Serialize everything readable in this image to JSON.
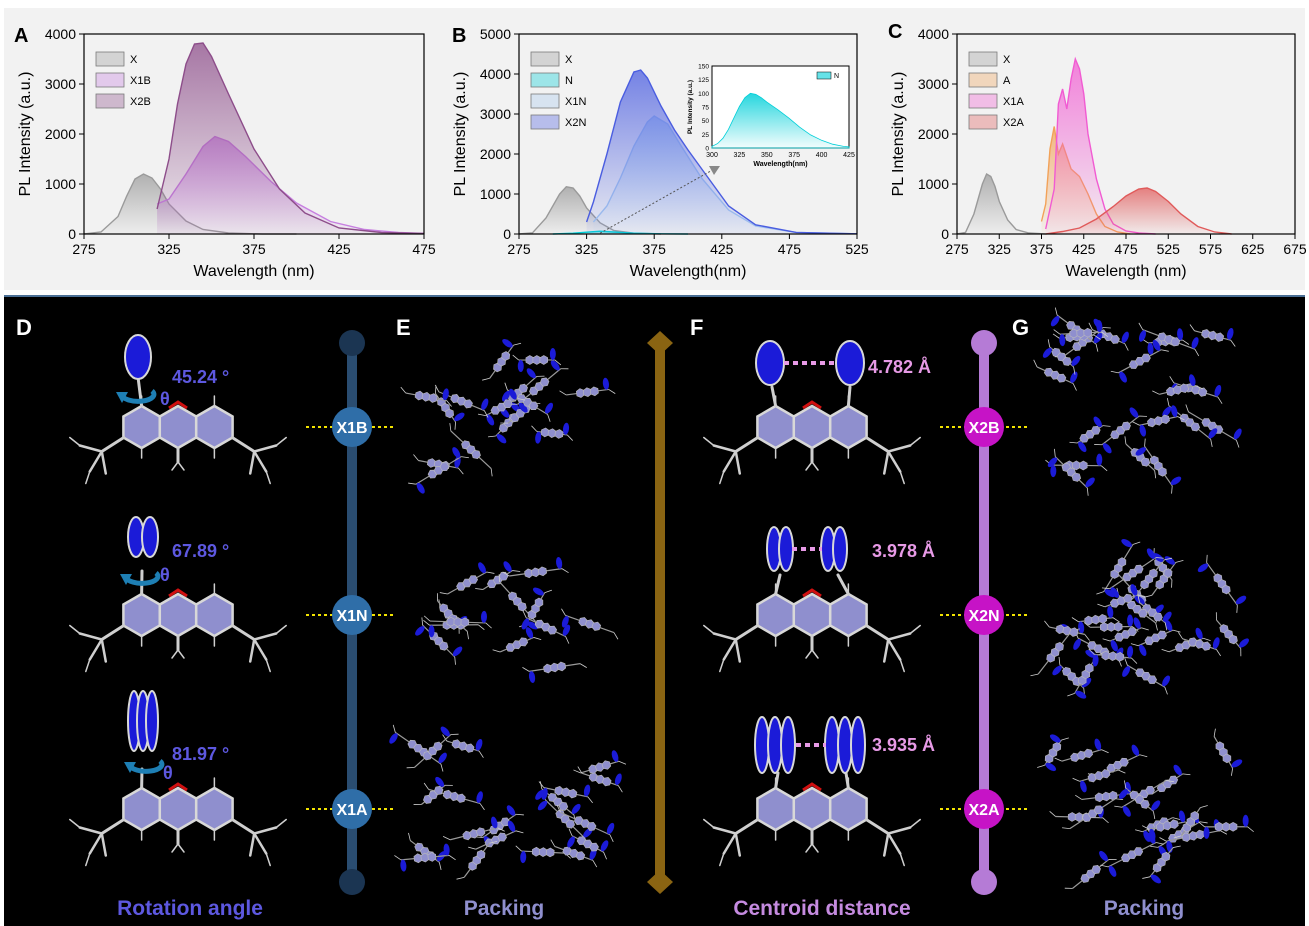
{
  "chart_data": [
    {
      "panel": "A",
      "type": "area",
      "xlabel": "Wavelength (nm)",
      "ylabel": "PL Intensity (a.u.)",
      "xlim": [
        275,
        475
      ],
      "ylim": [
        0,
        4000
      ],
      "xticks": [
        275,
        325,
        375,
        425,
        475
      ],
      "yticks": [
        0,
        1000,
        2000,
        3000,
        4000
      ],
      "legend_position": "top-left",
      "series": [
        {
          "name": "X",
          "color": "#9a9a9a",
          "x": [
            275,
            285,
            295,
            300,
            305,
            310,
            315,
            320,
            325,
            335,
            345,
            360,
            380,
            400
          ],
          "y": [
            0,
            40,
            350,
            750,
            1100,
            1200,
            1120,
            900,
            600,
            260,
            90,
            20,
            0,
            0
          ]
        },
        {
          "name": "X1B",
          "color": "#c77fe0",
          "x": [
            318,
            325,
            335,
            345,
            352,
            360,
            370,
            385,
            400,
            420,
            440,
            460,
            475
          ],
          "y": [
            600,
            700,
            1200,
            1750,
            1950,
            1850,
            1550,
            1050,
            620,
            250,
            90,
            30,
            10
          ]
        },
        {
          "name": "X2B",
          "color": "#8d4d8a",
          "x": [
            318,
            325,
            330,
            335,
            340,
            345,
            350,
            360,
            375,
            390,
            405,
            425,
            450,
            475
          ],
          "y": [
            500,
            1500,
            2600,
            3400,
            3800,
            3820,
            3550,
            2800,
            1700,
            900,
            420,
            120,
            30,
            10
          ]
        }
      ]
    },
    {
      "panel": "B",
      "type": "area",
      "xlabel": "Wavelength(nm)",
      "ylabel": "PL Intensity (a.u.)",
      "xlim": [
        275,
        525
      ],
      "ylim": [
        0,
        5000
      ],
      "xticks": [
        275,
        325,
        375,
        425,
        475,
        525
      ],
      "yticks": [
        0,
        1000,
        2000,
        3000,
        4000,
        5000
      ],
      "legend_position": "top-left",
      "series": [
        {
          "name": "X",
          "color": "#9a9a9a",
          "x": [
            275,
            285,
            295,
            305,
            310,
            315,
            320,
            325,
            335,
            345,
            360,
            380
          ],
          "y": [
            0,
            30,
            400,
            1000,
            1180,
            1150,
            950,
            650,
            280,
            90,
            20,
            0
          ]
        },
        {
          "name": "N",
          "color": "#00cfd8",
          "x": [
            300,
            315,
            325,
            335,
            345,
            360,
            380,
            400
          ],
          "y": [
            0,
            20,
            45,
            70,
            50,
            20,
            5,
            0
          ]
        },
        {
          "name": "X1N",
          "color": "#a7c8ef",
          "x": [
            330,
            340,
            350,
            360,
            370,
            375,
            385,
            395,
            410,
            430,
            450,
            480,
            525
          ],
          "y": [
            300,
            700,
            1400,
            2200,
            2800,
            2950,
            2750,
            2200,
            1400,
            600,
            200,
            40,
            5
          ]
        },
        {
          "name": "X2N",
          "color": "#4a5de0",
          "x": [
            325,
            330,
            340,
            350,
            360,
            365,
            370,
            380,
            390,
            400,
            415,
            430,
            450,
            480,
            525
          ],
          "y": [
            300,
            800,
            2000,
            3300,
            4050,
            4100,
            3900,
            3200,
            2600,
            2100,
            1400,
            700,
            230,
            40,
            5
          ]
        }
      ],
      "inset": {
        "xlabel": "Wavelength(nm)",
        "ylabel": "PL Intensity (a.u.)",
        "xlim": [
          300,
          425
        ],
        "ylim": [
          0,
          150
        ],
        "xticks": [
          300,
          325,
          350,
          375,
          400,
          425
        ],
        "yticks": [
          0,
          25,
          50,
          75,
          100,
          125,
          150
        ],
        "legend": "N",
        "series": {
          "name": "N",
          "color": "#00cfd8",
          "x": [
            300,
            305,
            310,
            315,
            320,
            325,
            330,
            335,
            340,
            345,
            350,
            360,
            370,
            380,
            390,
            400,
            410,
            420,
            425
          ],
          "y": [
            3,
            8,
            18,
            34,
            55,
            76,
            92,
            100,
            98,
            92,
            84,
            70,
            55,
            38,
            24,
            14,
            7,
            3,
            2
          ]
        }
      }
    },
    {
      "panel": "C",
      "type": "area",
      "xlabel": "Wavelength (nm)",
      "ylabel": "PL Intensity (a.u.)",
      "xlim": [
        275,
        675
      ],
      "ylim": [
        0,
        4000
      ],
      "xticks": [
        275,
        325,
        375,
        425,
        475,
        525,
        575,
        625,
        675
      ],
      "yticks": [
        0,
        1000,
        2000,
        3000,
        4000
      ],
      "legend_position": "top-left",
      "series": [
        {
          "name": "X",
          "color": "#9a9a9a",
          "x": [
            275,
            285,
            295,
            305,
            310,
            315,
            320,
            325,
            335,
            345,
            360,
            380
          ],
          "y": [
            0,
            30,
            400,
            1000,
            1200,
            1150,
            950,
            650,
            280,
            90,
            20,
            0
          ]
        },
        {
          "name": "A",
          "color": "#f2a259",
          "x": [
            375,
            380,
            385,
            390,
            395,
            400,
            410,
            420,
            430,
            440,
            450,
            465,
            480
          ],
          "y": [
            250,
            600,
            1700,
            2150,
            1600,
            1800,
            1300,
            1150,
            800,
            400,
            150,
            40,
            0
          ]
        },
        {
          "name": "X1A",
          "color": "#f15bd2",
          "x": [
            380,
            390,
            395,
            400,
            405,
            410,
            415,
            420,
            425,
            430,
            440,
            450,
            460,
            475,
            490,
            510
          ],
          "y": [
            100,
            900,
            2600,
            2900,
            2500,
            3100,
            3500,
            3300,
            2800,
            2000,
            1100,
            500,
            200,
            60,
            20,
            0
          ]
        },
        {
          "name": "X2A",
          "color": "#e05a5a",
          "x": [
            380,
            400,
            420,
            440,
            460,
            475,
            490,
            500,
            510,
            525,
            540,
            560,
            580,
            600
          ],
          "y": [
            0,
            50,
            120,
            300,
            550,
            760,
            900,
            920,
            850,
            650,
            400,
            150,
            40,
            0
          ]
        }
      ]
    }
  ],
  "bottom": {
    "labels": {
      "D": "D",
      "E": "E",
      "F": "F",
      "G": "G"
    },
    "column_titles": {
      "rotation": "Rotation angle",
      "packing_left": "Packing",
      "centroid": "Centroid distance",
      "packing_right": "Packing"
    },
    "theta": "θ",
    "angles": [
      "45.24 °",
      "67.89 °",
      "81.97 °"
    ],
    "distances": [
      "4.782 Å",
      "3.978 Å",
      "3.935 Å"
    ],
    "left_nodes": [
      "X1B",
      "X1N",
      "X1A"
    ],
    "right_nodes": [
      "X2B",
      "X2N",
      "X2A"
    ],
    "colors": {
      "left_rail": "#2a4d71",
      "left_node": "#2f6ea8",
      "left_end": "#1b3552",
      "center_rail": "#8a6412",
      "right_rail": "#b57bd6",
      "right_node": "#c613c6",
      "right_end": "#b57bd6",
      "angle_text": "#5d58e0",
      "distance_text": "#e79ae6",
      "molecule_core": "#8f8fce",
      "molecule_ring": "#1b1bd8",
      "oxygen": "#d01010"
    }
  }
}
